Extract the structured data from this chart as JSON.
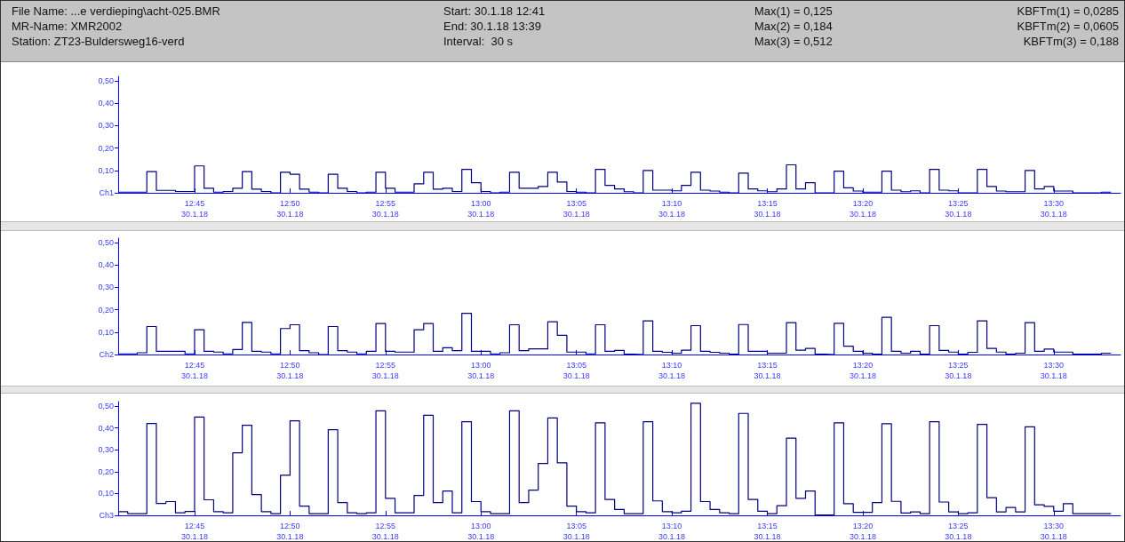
{
  "chart_data": [
    {
      "type": "step",
      "annotations": [
        "File Name: ...e verdieping\\acht-025.BMR",
        "Start: 30.1.18 12:41",
        "Max(1) = 0,125",
        "KBFTm(1) = 0,0285",
        "MR-Name: XMR2002",
        "End: 30.1.18 13:39",
        "Max(2) = 0,184",
        "KBFTm(2) = 0,0605",
        "Station: ZT23-Buldersweg16-verd",
        "Interval:  30 s",
        "Max(3) = 0,512",
        "KBFTm(3) = 0,188"
      ],
      "x": [
        "--01-30T12:41",
        "--01-30T12:41:30",
        "--01-30T12:42",
        "--01-30T12:42:30",
        "--01-30T12:43",
        "--01-30T12:43:30",
        "--01-30T12:44",
        "--01-30T12:44:30",
        "--01-30T12:45",
        "--01-30T12:45:30",
        "--01-30T12:46",
        "--01-30T12:46:30",
        "--01-30T12:47",
        "--01-30T12:47:30",
        "--01-30T12:48",
        "--01-30T12:48:30",
        "--01-30T12:49",
        "--01-30T12:49:30",
        "--01-30T12:50",
        "--01-30T12:50:30",
        "--01-30T12:51",
        "--01-30T12:51:30",
        "--01-30T12:52",
        "--01-30T12:52:30",
        "--01-30T12:53",
        "--01-30T12:53:30",
        "--01-30T12:54",
        "--01-30T12:54:30",
        "--01-30T12:55",
        "--01-30T12:55:30",
        "--01-30T12:56",
        "--01-30T12:56:30",
        "--01-30T12:57",
        "--01-30T12:57:30",
        "--01-30T12:58",
        "--01-30T12:58:30",
        "--01-30T12:59",
        "--01-30T12:59:30",
        "--01-30T13:00",
        "--01-30T13:00:30",
        "--01-30T13:01",
        "--01-30T13:01:30",
        "--01-30T13:02",
        "--01-30T13:02:30",
        "--01-30T13:03",
        "--01-30T13:03:30",
        "--01-30T13:04",
        "--01-30T13:04:30",
        "--01-30T13:05",
        "--01-30T13:05:30",
        "--01-30T13:06",
        "--01-30T13:06:30",
        "--01-30T13:07",
        "--01-30T13:07:30",
        "--01-30T13:08",
        "--01-30T13:08:30",
        "--01-30T13:09",
        "--01-30T13:09:30",
        "--01-30T13:10",
        "--01-30T13:10:30",
        "--01-30T13:11",
        "--01-30T13:11:30",
        "--01-30T13:12",
        "--01-30T13:12:30",
        "--01-30T13:13",
        "--01-30T13:13:30",
        "--01-30T13:14",
        "--01-30T13:14:30",
        "--01-30T13:15",
        "--01-30T13:15:30",
        "--01-30T13:16",
        "--01-30T13:16:30",
        "--01-30T13:17",
        "--01-30T13:17:30",
        "--01-30T13:18",
        "--01-30T13:18:30",
        "--01-30T13:19",
        "--01-30T13:19:30",
        "--01-30T13:20",
        "--01-30T13:20:30",
        "--01-30T13:21",
        "--01-30T13:21:30",
        "--01-30T13:22",
        "--01-30T13:22:30",
        "--01-30T13:23",
        "--01-30T13:23:30",
        "--01-30T13:24",
        "--01-30T13:24:30",
        "--01-30T13:25",
        "--01-30T13:25:30",
        "--01-30T13:26",
        "--01-30T13:26:30",
        "--01-30T13:27",
        "--01-30T13:27:30",
        "--01-30T13:28",
        "--01-30T13:28:30",
        "--01-30T13:29",
        "--01-30T13:29:30",
        "--01-30T13:30",
        "--01-30T13:30:30",
        "--01-30T13:31",
        "--01-30T13:31:30",
        "--01-30T13:32",
        "--01-30T13:32:30",
        "--01-30T13:33"
      ],
      "series": [
        {
          "color": "#000080",
          "values": [
            0.003,
            0.003,
            0.003,
            0.095,
            0.011,
            0.011,
            0.006,
            0.006,
            0.12,
            0.02,
            0.003,
            0.006,
            0.02,
            0.095,
            0.016,
            0.006,
            0,
            0.092,
            0.083,
            0.016,
            0.003,
            0,
            0.083,
            0.02,
            0.006,
            0,
            0.003,
            0.092,
            0.02,
            0.003,
            0.003,
            0.04,
            0.092,
            0.016,
            0.02,
            0.006,
            0.105,
            0.045,
            0.006,
            0,
            0.003,
            0.092,
            0.02,
            0.02,
            0.028,
            0.092,
            0.048,
            0.006,
            0.003,
            0,
            0.105,
            0.033,
            0.017,
            0.005,
            0,
            0.1,
            0.012,
            0.012,
            0.009,
            0.033,
            0.092,
            0.012,
            0.008,
            0.003,
            0,
            0.088,
            0.017,
            0.009,
            0.005,
            0.017,
            0.125,
            0.017,
            0.045,
            0,
            0,
            0.097,
            0.022,
            0.008,
            0.003,
            0.003,
            0.097,
            0.012,
            0.005,
            0.009,
            0,
            0.105,
            0.012,
            0.009,
            0,
            0,
            0.105,
            0.028,
            0.008,
            0.005,
            0.005,
            0.1,
            0.017,
            0.028,
            0.008,
            0.008,
            0,
            0,
            0,
            0.003,
            0.003
          ]
        }
      ],
      "xlim": [
        "--01-30T12:41",
        "--01-30T13:33:30"
      ],
      "xticks": [
        {
          "value": "--01-30T12:45",
          "label": "12:45\n30.1.18"
        },
        {
          "value": "--01-30T12:50",
          "label": "12:50\n30.1.18"
        },
        {
          "value": "--01-30T12:55",
          "label": "12:55\n30.1.18"
        },
        {
          "value": "--01-30T13:00",
          "label": "13:00\n30.1.18"
        },
        {
          "value": "--01-30T13:05",
          "label": "13:05\n30.1.18"
        },
        {
          "value": "--01-30T13:10",
          "label": "13:10\n30.1.18"
        },
        {
          "value": "--01-30T13:15",
          "label": "13:15\n30.1.18"
        },
        {
          "value": "--01-30T13:20",
          "label": "13:20\n30.1.18"
        },
        {
          "value": "--01-30T13:25",
          "label": "13:25\n30.1.18"
        },
        {
          "value": "--01-30T13:30",
          "label": "13:30\n30.1.18"
        }
      ],
      "ylim": [
        0,
        0.52
      ],
      "yticks": [
        {
          "value": 0,
          "label": "Ch1"
        },
        {
          "value": 0.1,
          "label": "0,10"
        },
        {
          "value": 0.2,
          "label": "0,20"
        },
        {
          "value": 0.3,
          "label": "0,30"
        },
        {
          "value": 0.4,
          "label": "0,40"
        },
        {
          "value": 0.5,
          "label": "0,50"
        }
      ]
    },
    {
      "type": "step",
      "x": [
        "--01-30T12:41",
        "--01-30T12:41:30",
        "--01-30T12:42",
        "--01-30T12:42:30",
        "--01-30T12:43",
        "--01-30T12:43:30",
        "--01-30T12:44",
        "--01-30T12:44:30",
        "--01-30T12:45",
        "--01-30T12:45:30",
        "--01-30T12:46",
        "--01-30T12:46:30",
        "--01-30T12:47",
        "--01-30T12:47:30",
        "--01-30T12:48",
        "--01-30T12:48:30",
        "--01-30T12:49",
        "--01-30T12:49:30",
        "--01-30T12:50",
        "--01-30T12:50:30",
        "--01-30T12:51",
        "--01-30T12:51:30",
        "--01-30T12:52",
        "--01-30T12:52:30",
        "--01-30T12:53",
        "--01-30T12:53:30",
        "--01-30T12:54",
        "--01-30T12:54:30",
        "--01-30T12:55",
        "--01-30T12:55:30",
        "--01-30T12:56",
        "--01-30T12:56:30",
        "--01-30T12:57",
        "--01-30T12:57:30",
        "--01-30T12:58",
        "--01-30T12:58:30",
        "--01-30T12:59",
        "--01-30T12:59:30",
        "--01-30T13:00",
        "--01-30T13:00:30",
        "--01-30T13:01",
        "--01-30T13:01:30",
        "--01-30T13:02",
        "--01-30T13:02:30",
        "--01-30T13:03",
        "--01-30T13:03:30",
        "--01-30T13:04",
        "--01-30T13:04:30",
        "--01-30T13:05",
        "--01-30T13:05:30",
        "--01-30T13:06",
        "--01-30T13:06:30",
        "--01-30T13:07",
        "--01-30T13:07:30",
        "--01-30T13:08",
        "--01-30T13:08:30",
        "--01-30T13:09",
        "--01-30T13:09:30",
        "--01-30T13:10",
        "--01-30T13:10:30",
        "--01-30T13:11",
        "--01-30T13:11:30",
        "--01-30T13:12",
        "--01-30T13:12:30",
        "--01-30T13:13",
        "--01-30T13:13:30",
        "--01-30T13:14",
        "--01-30T13:14:30",
        "--01-30T13:15",
        "--01-30T13:15:30",
        "--01-30T13:16",
        "--01-30T13:16:30",
        "--01-30T13:17",
        "--01-30T13:17:30",
        "--01-30T13:18",
        "--01-30T13:18:30",
        "--01-30T13:19",
        "--01-30T13:19:30",
        "--01-30T13:20",
        "--01-30T13:20:30",
        "--01-30T13:21",
        "--01-30T13:21:30",
        "--01-30T13:22",
        "--01-30T13:22:30",
        "--01-30T13:23",
        "--01-30T13:23:30",
        "--01-30T13:24",
        "--01-30T13:24:30",
        "--01-30T13:25",
        "--01-30T13:25:30",
        "--01-30T13:26",
        "--01-30T13:26:30",
        "--01-30T13:27",
        "--01-30T13:27:30",
        "--01-30T13:28",
        "--01-30T13:28:30",
        "--01-30T13:29",
        "--01-30T13:29:30",
        "--01-30T13:30",
        "--01-30T13:30:30",
        "--01-30T13:31",
        "--01-30T13:31:30",
        "--01-30T13:32",
        "--01-30T13:32:30",
        "--01-30T13:33"
      ],
      "series": [
        {
          "color": "#000080",
          "values": [
            0.003,
            0.003,
            0.008,
            0.125,
            0.014,
            0.014,
            0.014,
            0.003,
            0.111,
            0.014,
            0.011,
            0.003,
            0.022,
            0.143,
            0.014,
            0.011,
            0.003,
            0.116,
            0.133,
            0.017,
            0.008,
            0,
            0.125,
            0.017,
            0.011,
            0.003,
            0.014,
            0.138,
            0.014,
            0.011,
            0.011,
            0.111,
            0.138,
            0.014,
            0.03,
            0.017,
            0.184,
            0.014,
            0.014,
            0.003,
            0.008,
            0.133,
            0.017,
            0.025,
            0.025,
            0.146,
            0.086,
            0.011,
            0.011,
            0.003,
            0.133,
            0.014,
            0.018,
            0.002,
            0,
            0.15,
            0.014,
            0.01,
            0.006,
            0.019,
            0.129,
            0.014,
            0.01,
            0.006,
            0.002,
            0.134,
            0.014,
            0.014,
            0.006,
            0.006,
            0.142,
            0.019,
            0.027,
            0.002,
            0,
            0.139,
            0.037,
            0.014,
            0.006,
            0.002,
            0.166,
            0.014,
            0.006,
            0.014,
            0.002,
            0.129,
            0.018,
            0.011,
            0.002,
            0.01,
            0.15,
            0.027,
            0.011,
            0.002,
            0.006,
            0.142,
            0.014,
            0.024,
            0.011,
            0.011,
            0.002,
            0.002,
            0.002,
            0.006,
            0.006
          ]
        }
      ],
      "xlim": [
        "--01-30T12:41",
        "--01-30T13:33:30"
      ],
      "xticks": [
        {
          "value": "--01-30T12:45",
          "label": "12:45\n30.1.18"
        },
        {
          "value": "--01-30T12:50",
          "label": "12:50\n30.1.18"
        },
        {
          "value": "--01-30T12:55",
          "label": "12:55\n30.1.18"
        },
        {
          "value": "--01-30T13:00",
          "label": "13:00\n30.1.18"
        },
        {
          "value": "--01-30T13:05",
          "label": "13:05\n30.1.18"
        },
        {
          "value": "--01-30T13:10",
          "label": "13:10\n30.1.18"
        },
        {
          "value": "--01-30T13:15",
          "label": "13:15\n30.1.18"
        },
        {
          "value": "--01-30T13:20",
          "label": "13:20\n30.1.18"
        },
        {
          "value": "--01-30T13:25",
          "label": "13:25\n30.1.18"
        },
        {
          "value": "--01-30T13:30",
          "label": "13:30\n30.1.18"
        }
      ],
      "ylim": [
        0,
        0.52
      ],
      "yticks": [
        {
          "value": 0,
          "label": "Ch2"
        },
        {
          "value": 0.1,
          "label": "0,10"
        },
        {
          "value": 0.2,
          "label": "0,20"
        },
        {
          "value": 0.3,
          "label": "0,30"
        },
        {
          "value": 0.4,
          "label": "0,40"
        },
        {
          "value": 0.5,
          "label": "0,50"
        }
      ]
    },
    {
      "type": "step",
      "x": [
        "--01-30T12:41",
        "--01-30T12:41:30",
        "--01-30T12:42",
        "--01-30T12:42:30",
        "--01-30T12:43",
        "--01-30T12:43:30",
        "--01-30T12:44",
        "--01-30T12:44:30",
        "--01-30T12:45",
        "--01-30T12:45:30",
        "--01-30T12:46",
        "--01-30T12:46:30",
        "--01-30T12:47",
        "--01-30T12:47:30",
        "--01-30T12:48",
        "--01-30T12:48:30",
        "--01-30T12:49",
        "--01-30T12:49:30",
        "--01-30T12:50",
        "--01-30T12:50:30",
        "--01-30T12:51",
        "--01-30T12:51:30",
        "--01-30T12:52",
        "--01-30T12:52:30",
        "--01-30T12:53",
        "--01-30T12:53:30",
        "--01-30T12:54",
        "--01-30T12:54:30",
        "--01-30T12:55",
        "--01-30T12:55:30",
        "--01-30T12:56",
        "--01-30T12:56:30",
        "--01-30T12:57",
        "--01-30T12:57:30",
        "--01-30T12:58",
        "--01-30T12:58:30",
        "--01-30T12:59",
        "--01-30T12:59:30",
        "--01-30T13:00",
        "--01-30T13:00:30",
        "--01-30T13:01",
        "--01-30T13:01:30",
        "--01-30T13:02",
        "--01-30T13:02:30",
        "--01-30T13:03",
        "--01-30T13:03:30",
        "--01-30T13:04",
        "--01-30T13:04:30",
        "--01-30T13:05",
        "--01-30T13:05:30",
        "--01-30T13:06",
        "--01-30T13:06:30",
        "--01-30T13:07",
        "--01-30T13:07:30",
        "--01-30T13:08",
        "--01-30T13:08:30",
        "--01-30T13:09",
        "--01-30T13:09:30",
        "--01-30T13:10",
        "--01-30T13:10:30",
        "--01-30T13:11",
        "--01-30T13:11:30",
        "--01-30T13:12",
        "--01-30T13:12:30",
        "--01-30T13:13",
        "--01-30T13:13:30",
        "--01-30T13:14",
        "--01-30T13:14:30",
        "--01-30T13:15",
        "--01-30T13:15:30",
        "--01-30T13:16",
        "--01-30T13:16:30",
        "--01-30T13:17",
        "--01-30T13:17:30",
        "--01-30T13:18",
        "--01-30T13:18:30",
        "--01-30T13:19",
        "--01-30T13:19:30",
        "--01-30T13:20",
        "--01-30T13:20:30",
        "--01-30T13:21",
        "--01-30T13:21:30",
        "--01-30T13:22",
        "--01-30T13:22:30",
        "--01-30T13:23",
        "--01-30T13:23:30",
        "--01-30T13:24",
        "--01-30T13:24:30",
        "--01-30T13:25",
        "--01-30T13:25:30",
        "--01-30T13:26",
        "--01-30T13:26:30",
        "--01-30T13:27",
        "--01-30T13:27:30",
        "--01-30T13:28",
        "--01-30T13:28:30",
        "--01-30T13:29",
        "--01-30T13:29:30",
        "--01-30T13:30",
        "--01-30T13:30:30",
        "--01-30T13:31",
        "--01-30T13:31:30",
        "--01-30T13:32",
        "--01-30T13:32:30",
        "--01-30T13:33"
      ],
      "series": [
        {
          "color": "#000080",
          "values": [
            0.017,
            0.008,
            0.008,
            0.42,
            0.054,
            0.063,
            0.012,
            0.018,
            0.449,
            0.071,
            0.017,
            0.012,
            0.286,
            0.412,
            0.095,
            0.017,
            0.008,
            0.183,
            0.432,
            0.042,
            0.008,
            0.008,
            0.391,
            0.058,
            0.012,
            0.008,
            0.012,
            0.478,
            0.078,
            0.012,
            0.012,
            0.091,
            0.457,
            0.058,
            0.111,
            0.012,
            0.428,
            0.063,
            0.017,
            0.008,
            0.008,
            0.478,
            0.058,
            0.115,
            0.237,
            0.445,
            0.24,
            0.042,
            0.017,
            0.012,
            0.423,
            0.073,
            0.027,
            0.008,
            0.008,
            0.428,
            0.066,
            0.017,
            0.012,
            0.019,
            0.512,
            0.063,
            0.027,
            0.012,
            0.008,
            0.466,
            0.073,
            0.019,
            0.008,
            0.044,
            0.353,
            0.078,
            0.111,
            0.002,
            0.002,
            0.423,
            0.053,
            0.014,
            0.014,
            0.058,
            0.419,
            0.064,
            0.011,
            0.016,
            0.008,
            0.428,
            0.061,
            0.016,
            0.008,
            0.012,
            0.416,
            0.081,
            0.016,
            0.036,
            0.016,
            0.405,
            0.048,
            0.041,
            0.019,
            0.053,
            0.008,
            0.008,
            0.008,
            0.008,
            0.008
          ]
        }
      ],
      "xlim": [
        "--01-30T12:41",
        "--01-30T13:33:30"
      ],
      "xticks": [
        {
          "value": "--01-30T12:45",
          "label": "12:45\n30.1.18"
        },
        {
          "value": "--01-30T12:50",
          "label": "12:50\n30.1.18"
        },
        {
          "value": "--01-30T12:55",
          "label": "12:55\n30.1.18"
        },
        {
          "value": "--01-30T13:00",
          "label": "13:00\n30.1.18"
        },
        {
          "value": "--01-30T13:05",
          "label": "13:05\n30.1.18"
        },
        {
          "value": "--01-30T13:10",
          "label": "13:10\n30.1.18"
        },
        {
          "value": "--01-30T13:15",
          "label": "13:15\n30.1.18"
        },
        {
          "value": "--01-30T13:20",
          "label": "13:20\n30.1.18"
        },
        {
          "value": "--01-30T13:25",
          "label": "13:25\n30.1.18"
        },
        {
          "value": "--01-30T13:30",
          "label": "13:30\n30.1.18"
        }
      ],
      "ylim": [
        0,
        0.52
      ],
      "yticks": [
        {
          "value": 0,
          "label": "Ch3"
        },
        {
          "value": 0.1,
          "label": "0,10"
        },
        {
          "value": 0.2,
          "label": "0,20"
        },
        {
          "value": 0.3,
          "label": "0,30"
        },
        {
          "value": 0.4,
          "label": "0,40"
        },
        {
          "value": 0.5,
          "label": "0,50"
        }
      ]
    }
  ]
}
